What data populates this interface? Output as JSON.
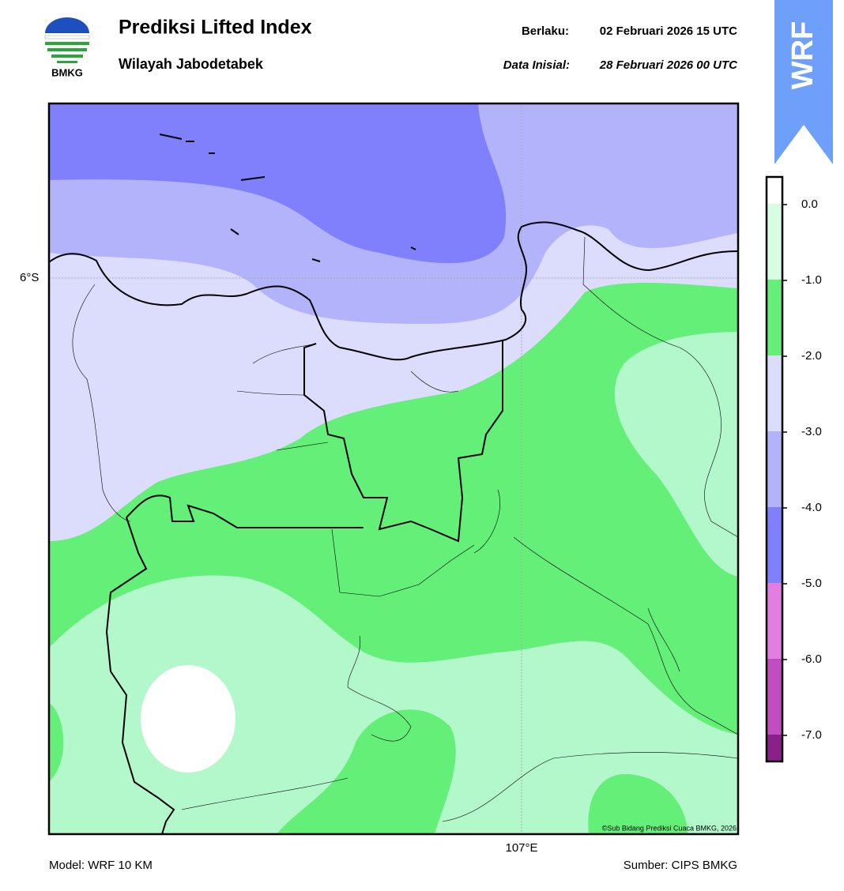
{
  "header": {
    "title": "Prediksi Lifted Index",
    "subtitle": "Wilayah Jabodetabek",
    "valid_label": "Berlaku:",
    "valid_time": "02 Februari 2026 15 UTC",
    "init_label": "Data Inisial:",
    "init_time": "28 Februari 2026 00 UTC",
    "logo_text": "BMKG",
    "badge": "WRF"
  },
  "map": {
    "lat_label": "6°S",
    "lon_label": "107°E",
    "copyright": "©Sub Bidang Prediksi Cuaca BMKG, 2026"
  },
  "colorbar": {
    "ticks": [
      "0.0",
      "-1.0",
      "-2.0",
      "-3.0",
      "-4.0",
      "-5.0",
      "-6.0",
      "-7.0"
    ]
  },
  "footer": {
    "model": "Model: WRF 10 KM",
    "source": "Sumber: CIPS BMKG"
  }
}
